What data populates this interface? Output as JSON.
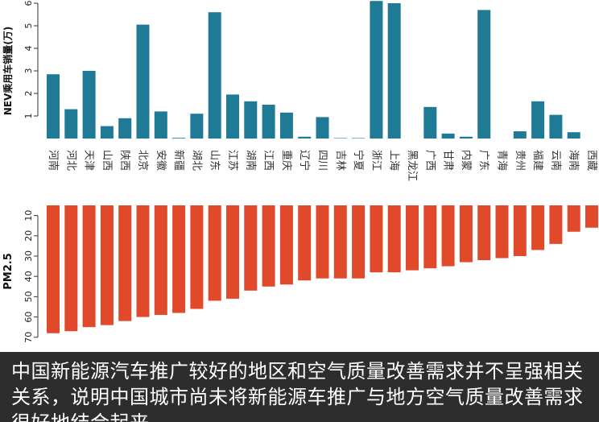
{
  "chart_data": [
    {
      "type": "bar",
      "ylabel": "NEV乘用车销量(万)",
      "ylim": [
        0,
        6
      ],
      "yticks": [
        1,
        2,
        3,
        4,
        5,
        6
      ],
      "categories": [
        "河南",
        "河北",
        "天津",
        "山西",
        "陕西",
        "北京",
        "安徽",
        "新疆",
        "湖北",
        "山东",
        "江苏",
        "湖南",
        "江西",
        "重庆",
        "辽宁",
        "四川",
        "吉林",
        "宁夏",
        "浙江",
        "上海",
        "黑龙江",
        "广西",
        "甘肃",
        "内蒙",
        "广东",
        "青海",
        "贵州",
        "福建",
        "云南",
        "海南",
        "西藏"
      ],
      "values": [
        2.85,
        1.3,
        3.0,
        0.55,
        0.9,
        5.05,
        1.2,
        0.03,
        1.1,
        5.6,
        1.95,
        1.65,
        1.5,
        1.15,
        0.08,
        0.95,
        0.02,
        0.02,
        6.1,
        6.0,
        0.0,
        1.4,
        0.22,
        0.08,
        5.7,
        0.0,
        0.32,
        1.65,
        1.05,
        0.28,
        0.0
      ],
      "color": "#1f7a96"
    },
    {
      "type": "bar",
      "ylabel": "PM2.5",
      "ylim": [
        5,
        70
      ],
      "yticks": [
        10,
        20,
        30,
        40,
        50,
        60,
        70
      ],
      "inverted": true,
      "values": [
        68,
        67,
        65,
        64,
        62,
        60,
        59,
        58,
        56,
        52,
        51,
        47,
        45,
        44,
        42,
        41,
        41,
        41,
        38,
        38,
        37,
        36,
        35,
        33,
        32,
        31,
        30,
        27,
        24,
        18,
        16
      ],
      "color": "#e04a2a"
    }
  ],
  "caption": "中国新能源汽车推广较好的地区和空气质量改善需求并不呈强相关关系，说明中国城市尚未将新能源车推广与地方空气质量改善需求很好地结合起来"
}
